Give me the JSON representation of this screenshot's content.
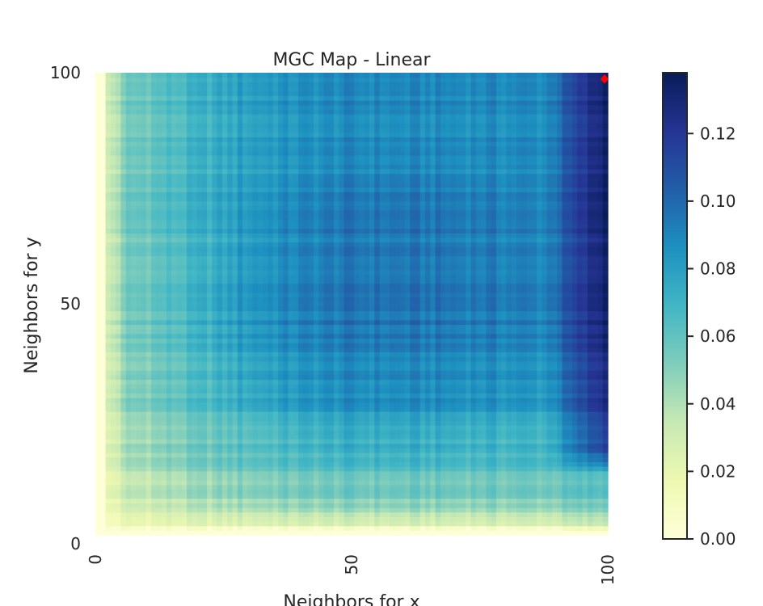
{
  "chart_data": {
    "type": "heatmap",
    "title": "MGC Map - Linear",
    "xlabel": "Neighbors for x",
    "ylabel": "Neighbors for y",
    "xlim": [
      0,
      100
    ],
    "ylim": [
      0,
      100
    ],
    "x_ticks": [
      "0",
      "50",
      "100"
    ],
    "y_ticks": [
      "0",
      "50",
      "100"
    ],
    "colorbar": {
      "min": 0.0,
      "max": 0.138,
      "ticks": [
        "0.00",
        "0.02",
        "0.04",
        "0.06",
        "0.08",
        "0.10",
        "0.12"
      ],
      "colormap": "YlGnBu"
    },
    "optimal_scale": {
      "x": 100,
      "y": 99,
      "color": "#ff0000"
    },
    "description_values": {
      "corner_low": 0.0,
      "interior_typical": 0.088,
      "right_edge_max": 0.138
    }
  }
}
